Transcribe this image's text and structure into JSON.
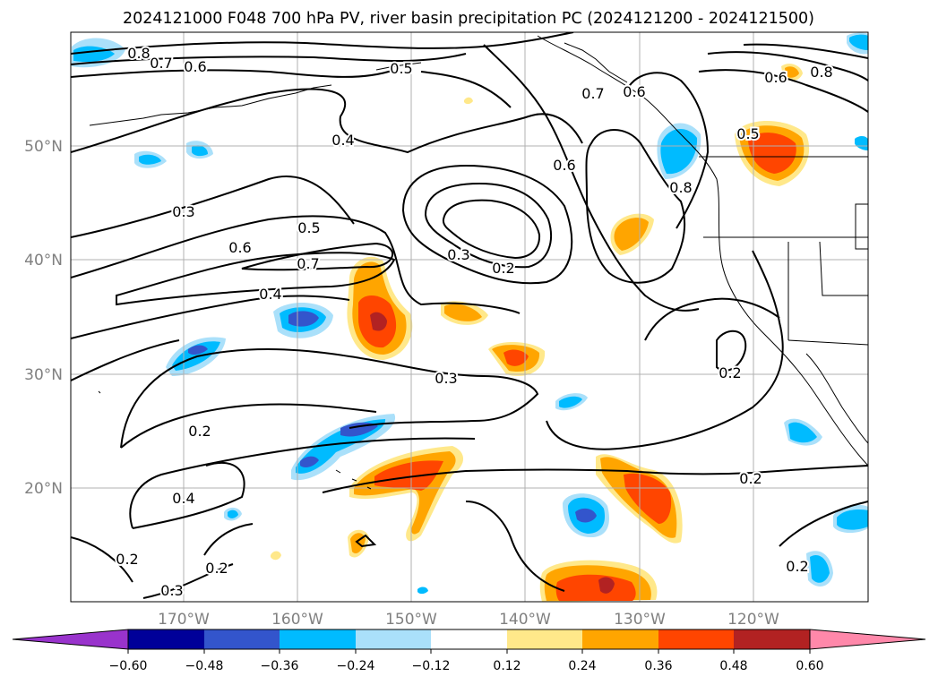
{
  "title": "2024121000 F048 700 hPa PV, river basin precipitation PC (2024121200 - 2024121500)",
  "x_ticks": [
    "170°W",
    "160°W",
    "150°W",
    "140°W",
    "130°W",
    "120°W"
  ],
  "y_ticks": [
    "50°N",
    "40°N",
    "30°N",
    "20°N"
  ],
  "contour_labels": [
    "0.8",
    "0.7",
    "0.6",
    "0.5",
    "0.4",
    "0.3",
    "0.6",
    "0.5",
    "0.7",
    "0.4",
    "0.3",
    "0.2",
    "0.3",
    "0.2",
    "0.4",
    "0.2",
    "0.2",
    "0.3",
    "0.6",
    "0.7",
    "0.6",
    "0.8",
    "0.6",
    "0.8",
    "0.5",
    "0.2",
    "0.2",
    "0.2"
  ],
  "colorbar": {
    "ticks": [
      "−0.60",
      "−0.48",
      "−0.36",
      "−0.24",
      "−0.12",
      "0.12",
      "0.24",
      "0.36",
      "0.48",
      "0.60"
    ],
    "colors": [
      "#9933cc",
      "#000099",
      "#3355cc",
      "#00bbff",
      "#aae0fa",
      "#ffffff",
      "#ffe88a",
      "#ffa500",
      "#ff4500",
      "#b22222",
      "#ff88aa"
    ]
  }
}
